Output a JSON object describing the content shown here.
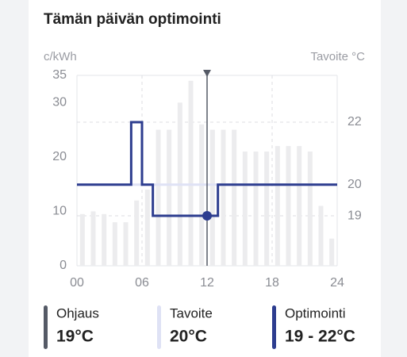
{
  "chart_data": {
    "type": "bar",
    "title": "Tämän päivän optimointi",
    "y_label": "c/kWh",
    "y2_label": "Tavoite °C",
    "xlim": [
      0,
      24
    ],
    "xticks": [
      {
        "value": 0,
        "label": "00"
      },
      {
        "value": 6,
        "label": "06"
      },
      {
        "value": 12,
        "label": "12"
      },
      {
        "value": 18,
        "label": "18"
      },
      {
        "value": 24,
        "label": "24"
      }
    ],
    "ylim": [
      0,
      35
    ],
    "yticks": [
      0,
      10,
      20,
      30,
      35
    ],
    "y2lim": [
      17.4,
      23.5
    ],
    "y2ticks": [
      19,
      20,
      22
    ],
    "x": [
      0,
      1,
      2,
      3,
      4,
      5,
      6,
      7,
      8,
      9,
      10,
      11,
      12,
      13,
      14,
      15,
      16,
      17,
      18,
      19,
      20,
      21,
      22,
      23
    ],
    "values": [
      9.5,
      10,
      9.5,
      8,
      8,
      12,
      14,
      25,
      25,
      30,
      34,
      26,
      25,
      25,
      25,
      21,
      21,
      21,
      22,
      22,
      22,
      21,
      11,
      5
    ],
    "color": "#ececee",
    "series": [
      {
        "color": "#dfe2f5",
        "axis": "y2",
        "x": [
          0,
          24
        ],
        "values": [
          20,
          20
        ]
      },
      {
        "color": "#2d3d8f",
        "axis": "y2",
        "x": [
          0,
          5,
          5,
          6,
          6,
          7,
          7,
          13,
          13,
          24
        ],
        "values": [
          20,
          20,
          22,
          22,
          20,
          20,
          19,
          19,
          20,
          20
        ]
      }
    ],
    "marker": {
      "x": 12,
      "y": 19,
      "color": "#2d3d8f",
      "line_color": "#555a66"
    },
    "legend": [
      {
        "label": "Ohjaus",
        "value": "19°C",
        "color": "#555a66"
      },
      {
        "label": "Tavoite",
        "value": "20°C",
        "color": "#dfe2f5"
      },
      {
        "label": "Optimointi",
        "value": "19 - 22°C",
        "color": "#2d3d8f"
      }
    ]
  }
}
